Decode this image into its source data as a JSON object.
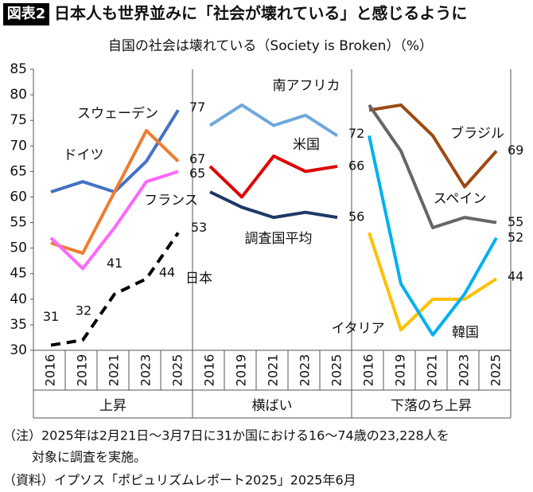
{
  "header": {
    "badge": "図表2",
    "headline": "日本人も世界並みに「社会が壊れている」と感じるように"
  },
  "chart_data": {
    "type": "line",
    "title": "自国の社会は壊れている（Society is Broken）（%）",
    "categories": [
      "2016",
      "2019",
      "2021",
      "2023",
      "2025"
    ],
    "ylim": [
      30,
      85
    ],
    "yticks": [
      30,
      35,
      40,
      45,
      50,
      55,
      60,
      65,
      70,
      75,
      80,
      85
    ],
    "grid": false,
    "groups": [
      {
        "label": "上昇",
        "series": [
          {
            "name": "スウェーデン",
            "color": "#4472c4",
            "values": [
              61,
              63,
              61,
              67,
              77
            ],
            "end_label": true
          },
          {
            "name": "ドイツ",
            "color": "#ed7d31",
            "values": [
              51,
              49,
              61,
              73,
              67
            ],
            "end_label": true
          },
          {
            "name": "フランス",
            "color": "#ff66ff",
            "values": [
              52,
              46,
              54,
              63,
              65
            ],
            "end_label": true
          },
          {
            "name": "日本",
            "color": "#000000",
            "dashed": true,
            "values": [
              31,
              32,
              41,
              44,
              53
            ],
            "point_labels": true
          }
        ]
      },
      {
        "label": "横ばい",
        "series": [
          {
            "name": "南アフリカ",
            "color": "#6fa8dc",
            "values": [
              74,
              78,
              74,
              76,
              72
            ],
            "end_label": true
          },
          {
            "name": "米国",
            "color": "#e00000",
            "values": [
              66,
              60,
              68,
              65,
              66
            ],
            "end_label": true
          },
          {
            "name": "調査国平均",
            "color": "#1f3864",
            "values": [
              61,
              58,
              56,
              57,
              56
            ],
            "end_label": true
          }
        ]
      },
      {
        "label": "下落のち上昇",
        "series": [
          {
            "name": "ブラジル",
            "color": "#9c4a12",
            "values": [
              77,
              78,
              72,
              62,
              69
            ],
            "end_label": true
          },
          {
            "name": "スペイン",
            "color": "#666666",
            "values": [
              78,
              69,
              54,
              56,
              55
            ],
            "end_label": true
          },
          {
            "name": "イタリア",
            "color": "#ffc000",
            "values": [
              53,
              34,
              40,
              40,
              44
            ],
            "end_label": true
          },
          {
            "name": "韓国",
            "color": "#00b0f0",
            "values": [
              72,
              43,
              33,
              41,
              52
            ],
            "end_label": true
          }
        ]
      }
    ]
  },
  "notes": [
    "（注）2025年は2月21日～3月7日に31か国における16～74歳の23,228人を",
    "対象に調査を実施。",
    "（資料）イプソス「ポピュリズムレポート2025」2025年6月"
  ]
}
